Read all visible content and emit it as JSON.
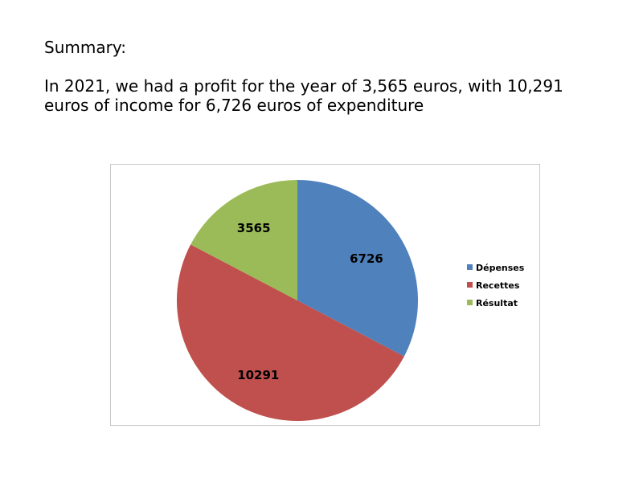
{
  "summary": {
    "heading": "Summary:",
    "text": "In 2021, we had a profit for the year of 3,565 euros, with 10,291 euros of income for 6,726 euros of expenditure"
  },
  "chart_data": {
    "type": "pie",
    "title": "",
    "categories": [
      "Dépenses",
      "Recettes",
      "Résultat"
    ],
    "values": [
      6726,
      10291,
      3565
    ],
    "data_labels": [
      "6726",
      "10291",
      "3565"
    ],
    "colors": [
      "#4f81bd",
      "#c0504d",
      "#9bbb59"
    ],
    "start_angle": "12 o'clock, clockwise",
    "legend_position": "right"
  }
}
